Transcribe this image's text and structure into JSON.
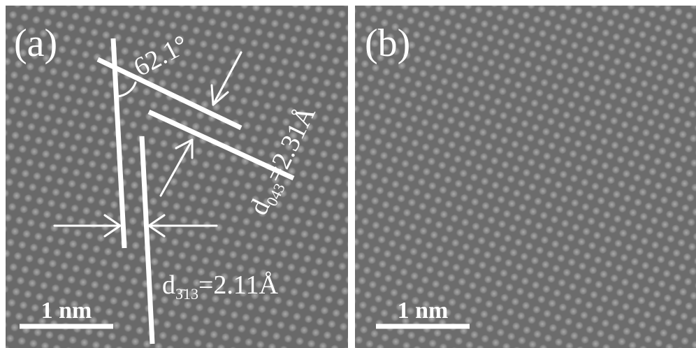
{
  "panels": [
    {
      "label": "(a)",
      "scale_bar": "1 nm",
      "angle_label": "62.1°",
      "spacing_1": {
        "symbol": "d",
        "index": "043",
        "value": "=2.31Å"
      },
      "spacing_2": {
        "symbol": "d",
        "index": "3̄13",
        "value": "=2.11Å"
      }
    },
    {
      "label": "(b)",
      "scale_bar": "1 nm"
    }
  ]
}
